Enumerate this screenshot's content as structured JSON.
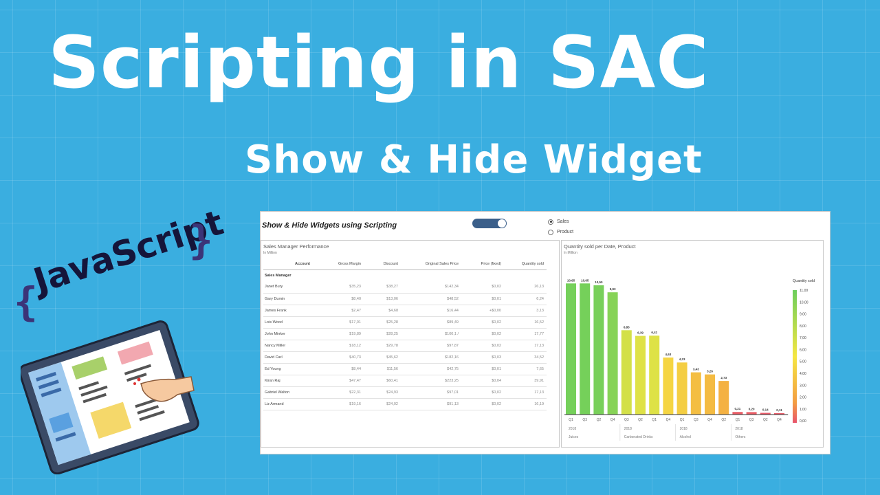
{
  "headline": {
    "title": "Scripting in SAC",
    "subtitle": "Show & Hide Widget"
  },
  "badge": {
    "left_brace": "{",
    "word": "JavaScript",
    "right_brace": "}"
  },
  "dashboard": {
    "title": "Show & Hide Widgets using Scripting",
    "toggle_on": true,
    "radio_options": [
      {
        "label": "Sales",
        "checked": true
      },
      {
        "label": "Product",
        "checked": false
      }
    ],
    "table_panel": {
      "title": "Sales Manager Performance",
      "unit": "In Million",
      "columns": [
        "Account",
        "Gross Margin",
        "Discount",
        "Original Sales Price",
        "Price (fixed)",
        "Quantity sold"
      ],
      "group_label": "Sales Manager",
      "rows": [
        [
          "Janet Bury",
          "$35,23",
          "$38,27",
          "$142,34",
          "$0,02",
          "26,13"
        ],
        [
          "Gary Dumin",
          "$8,40",
          "$13,06",
          "$48,52",
          "$0,01",
          "6,24"
        ],
        [
          "James Frank",
          "$2,47",
          "$4,68",
          "$16,44",
          "+$0,00",
          "3,13"
        ],
        [
          "Lois Wood",
          "$17,01",
          "$25,28",
          "$89,49",
          "$0,02",
          "16,52"
        ],
        [
          "John Minker",
          "$19,89",
          "$28,25",
          "$100,1 /",
          "$0,02",
          "17,77"
        ],
        [
          "Nancy Miller",
          "$18,12",
          "$29,78",
          "$97,87",
          "$0,02",
          "17,13"
        ],
        [
          "David Carl",
          "$40,73",
          "$45,62",
          "$182,16",
          "$0,03",
          "34,52"
        ],
        [
          "Ed Young",
          "$8,44",
          "$11,56",
          "$42,75",
          "$0,01",
          "7,65"
        ],
        [
          "Kiran Raj",
          "$47,47",
          "$60,41",
          "$223,25",
          "$0,04",
          "39,91"
        ],
        [
          "Gabriel Walton",
          "$22,31",
          "$24,93",
          "$97,01",
          "$0,02",
          "17,13"
        ],
        [
          "Liz Armand",
          "$19,16",
          "$24,02",
          "$91,13",
          "$0,02",
          "16,19"
        ]
      ]
    },
    "chart_panel": {
      "title": "Quantity sold per Date, Product",
      "unit": "In Million",
      "legend_title": "Quantity sold",
      "legend_ticks": [
        "11,00",
        "10,00",
        "9,00",
        "8,00",
        "7,00",
        "6,00",
        "5,00",
        "4,00",
        "3,00",
        "2,00",
        "1,00",
        "0,00"
      ]
    }
  },
  "chart_data": {
    "type": "bar",
    "title": "Quantity sold per Date, Product",
    "ylabel": "",
    "xlabel": "",
    "ylim": [
      0,
      11
    ],
    "categories": [
      "Q1",
      "Q3",
      "Q2",
      "Q4",
      "Q3",
      "Q2",
      "Q1",
      "Q4",
      "Q1",
      "Q3",
      "Q4",
      "Q2",
      "Q1",
      "Q3",
      "Q2",
      "Q4"
    ],
    "values": [
      10.65,
      10.65,
      10.5,
      9.93,
      6.85,
      6.39,
      6.41,
      4.63,
      4.23,
      3.43,
      3.26,
      2.73,
      0.21,
      0.2,
      0.14,
      0.11
    ],
    "value_labels": [
      "10,65",
      "10,65",
      "10,50",
      "9,93",
      "6,85",
      "6,39",
      "6,41",
      "4,63",
      "4,23",
      "3,43",
      "3,26",
      "2,73",
      "0,21",
      "0,20",
      "0,14",
      "0,11"
    ],
    "groups": [
      {
        "year": "2018",
        "product": "Juices",
        "count": 4
      },
      {
        "year": "2018",
        "product": "Carbonated Drinks",
        "count": 4
      },
      {
        "year": "2018",
        "product": "Alcohol",
        "count": 4
      },
      {
        "year": "2018",
        "product": "Others",
        "count": 4
      }
    ],
    "color_scale": {
      "low": "#e8546b",
      "mid_low": "#f39c42",
      "mid": "#f5e642",
      "high": "#6cce5c"
    },
    "legend": "right"
  }
}
